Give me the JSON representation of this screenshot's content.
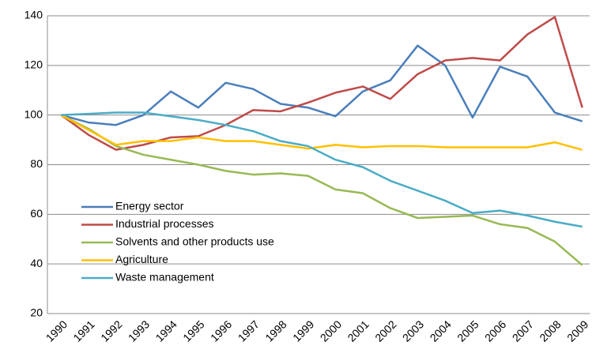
{
  "chart_data": {
    "type": "line",
    "categories": [
      "1990",
      "1991",
      "1992",
      "1993",
      "1994",
      "1995",
      "1996",
      "1997",
      "1998",
      "1999",
      "2000",
      "2001",
      "2002",
      "2003",
      "2004",
      "2005",
      "2006",
      "2007",
      "2008",
      "2009"
    ],
    "series": [
      {
        "name": "Energy sector",
        "color": "#4a7ebb",
        "values": [
          100,
          97,
          96,
          100,
          109.5,
          103,
          113,
          110.5,
          104.5,
          103,
          99.5,
          109.5,
          114,
          128,
          120,
          99,
          119.5,
          115.5,
          101,
          97.5
        ]
      },
      {
        "name": "Industrial processes",
        "color": "#be4b48",
        "values": [
          100,
          92,
          86,
          88,
          91,
          91.5,
          96,
          102,
          101.5,
          105,
          109,
          111.5,
          106.5,
          116.5,
          122,
          123,
          122,
          132.5,
          139.5,
          103
        ]
      },
      {
        "name": "Solvents and other products use",
        "color": "#98b954",
        "values": [
          100,
          94.5,
          87.5,
          84,
          82,
          80,
          77.5,
          76,
          76.5,
          75.5,
          70,
          68.5,
          62.5,
          58.5,
          59,
          59.5,
          56,
          54.5,
          49,
          39.5
        ]
      },
      {
        "name": "Agriculture",
        "color": "#ffc000",
        "values": [
          100,
          94,
          88,
          89.5,
          89.5,
          91,
          89.5,
          89.5,
          88,
          86.5,
          88,
          87,
          87.5,
          87.5,
          87,
          87,
          87,
          87,
          89,
          86
        ]
      },
      {
        "name": "Waste management",
        "color": "#4bacc6",
        "values": [
          100,
          100.5,
          101,
          101,
          99.5,
          98,
          96,
          93.5,
          89.5,
          87.5,
          82,
          79,
          73.5,
          69.5,
          65.5,
          60.5,
          61.5,
          59.5,
          57,
          55
        ]
      }
    ],
    "ylim": [
      20,
      140
    ],
    "yticks": [
      20,
      40,
      60,
      80,
      100,
      120,
      140
    ],
    "grid": true
  }
}
